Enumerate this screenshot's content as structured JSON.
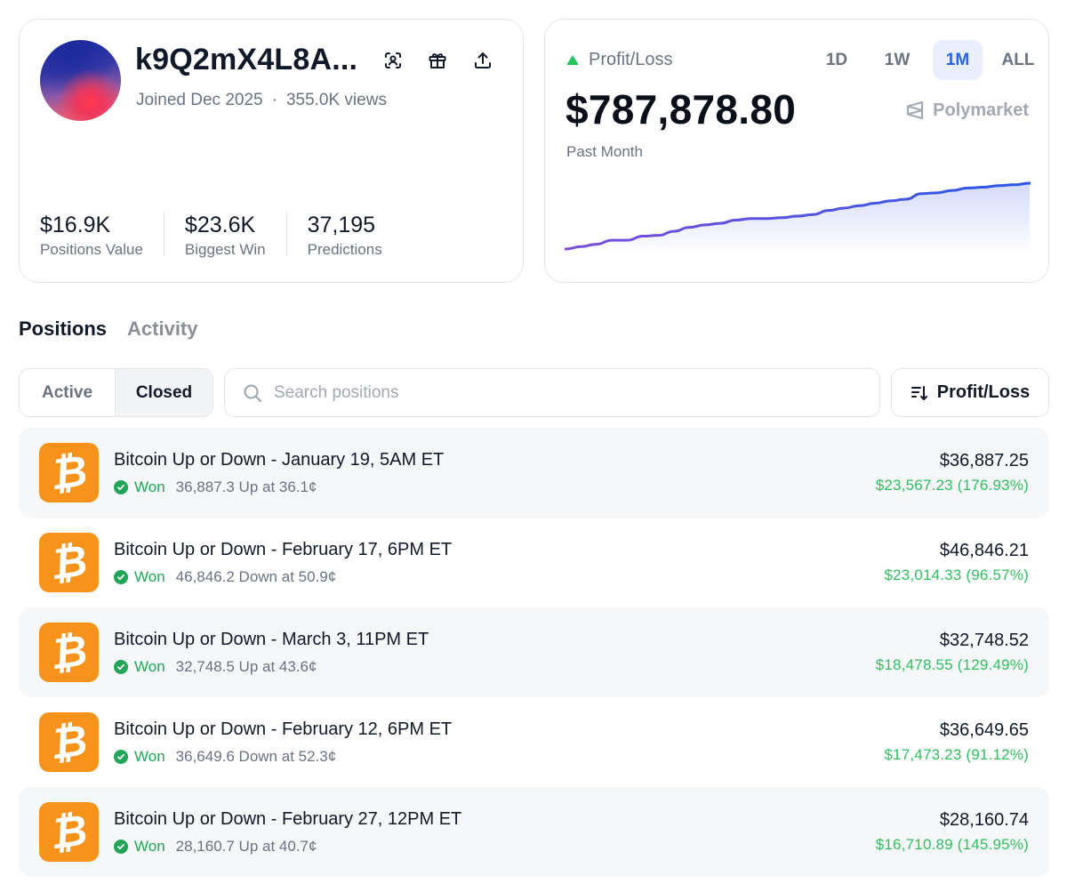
{
  "profile": {
    "username": "k9Q2mX4L8A...",
    "joined": "Joined Dec 2025",
    "views": "355.0K views",
    "stats": [
      {
        "value": "$16.9K",
        "label": "Positions Value"
      },
      {
        "value": "$23.6K",
        "label": "Biggest Win"
      },
      {
        "value": "37,195",
        "label": "Predictions"
      }
    ]
  },
  "pnl": {
    "label": "Profit/Loss",
    "value": "$787,878.80",
    "period": "Past Month",
    "brand": "Polymarket",
    "ranges": [
      "1D",
      "1W",
      "1M",
      "ALL"
    ],
    "active_range": "1M",
    "colors": {
      "line_start": "#7c4ddb",
      "line_end": "#2b59e3",
      "up": "#22c55e"
    }
  },
  "chart_data": {
    "type": "area",
    "title": "Profit/Loss",
    "xlabel": "",
    "ylabel": "",
    "x": [
      0,
      1,
      2,
      3,
      4,
      5,
      6,
      7,
      8,
      9,
      10,
      11,
      12,
      13,
      14,
      15,
      16,
      17,
      18,
      19,
      20,
      21,
      22,
      23,
      24,
      25,
      26,
      27,
      28,
      29,
      30
    ],
    "values": [
      0,
      3,
      6,
      11,
      11,
      16,
      17,
      22,
      27,
      30,
      32,
      36,
      38,
      38,
      39,
      41,
      43,
      48,
      51,
      54,
      57,
      60,
      62,
      69,
      70,
      73,
      76,
      77,
      79,
      80,
      82
    ],
    "ylim": [
      0,
      82
    ],
    "grid": false
  },
  "tabs": {
    "positions": "Positions",
    "activity": "Activity"
  },
  "filter": {
    "active": "Active",
    "closed": "Closed"
  },
  "search": {
    "placeholder": "Search positions"
  },
  "sort": {
    "label": "Profit/Loss"
  },
  "positions": [
    {
      "title": "Bitcoin Up or Down - January 19, 5AM ET",
      "status": "Won",
      "detail": "36,887.3 Up at 36.1¢",
      "amount": "$36,887.25",
      "gain": "$23,567.23 (176.93%)"
    },
    {
      "title": "Bitcoin Up or Down - February 17, 6PM ET",
      "status": "Won",
      "detail": "46,846.2 Down at 50.9¢",
      "amount": "$46,846.21",
      "gain": "$23,014.33 (96.57%)"
    },
    {
      "title": "Bitcoin Up or Down - March 3, 11PM ET",
      "status": "Won",
      "detail": "32,748.5 Up at 43.6¢",
      "amount": "$32,748.52",
      "gain": "$18,478.55 (129.49%)"
    },
    {
      "title": "Bitcoin Up or Down - February 12, 6PM ET",
      "status": "Won",
      "detail": "36,649.6 Down at 52.3¢",
      "amount": "$36,649.65",
      "gain": "$17,473.23 (91.12%)"
    },
    {
      "title": "Bitcoin Up or Down - February 27, 12PM ET",
      "status": "Won",
      "detail": "28,160.7 Up at 40.7¢",
      "amount": "$28,160.74",
      "gain": "$16,710.89 (145.95%)"
    }
  ],
  "coin_symbol": "₿"
}
